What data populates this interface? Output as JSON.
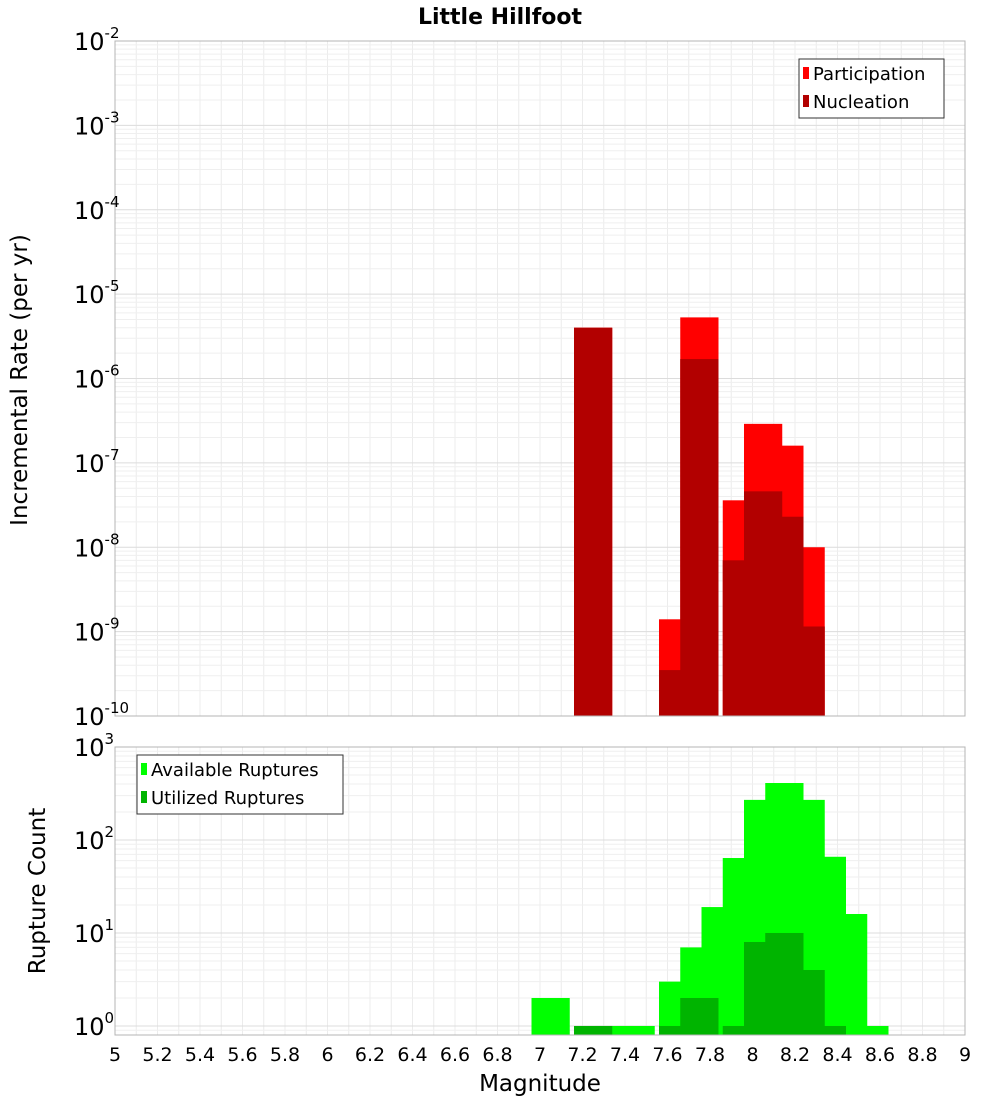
{
  "chart_data": {
    "title": "Little Hillfoot",
    "xlabel": "Magnitude",
    "x_ticks": [
      "5",
      "5.2",
      "5.4",
      "5.6",
      "5.8",
      "6",
      "6.2",
      "6.4",
      "6.6",
      "6.8",
      "7",
      "7.2",
      "7.4",
      "7.6",
      "7.8",
      "8",
      "8.2",
      "8.4",
      "8.6",
      "8.8",
      "9"
    ],
    "xlim": [
      5,
      9
    ],
    "grid": true,
    "panels": [
      {
        "type": "bar",
        "ylabel": "Incremental Rate (per yr)",
        "yscale": "log",
        "ylim": [
          1e-10,
          0.01
        ],
        "y_ticks": [
          {
            "base": "10",
            "exp": "-10"
          },
          {
            "base": "10",
            "exp": "-9"
          },
          {
            "base": "10",
            "exp": "-8"
          },
          {
            "base": "10",
            "exp": "-7"
          },
          {
            "base": "10",
            "exp": "-6"
          },
          {
            "base": "10",
            "exp": "-5"
          },
          {
            "base": "10",
            "exp": "-4"
          },
          {
            "base": "10",
            "exp": "-3"
          },
          {
            "base": "10",
            "exp": "-2"
          }
        ],
        "legend_position": "top-right",
        "series": [
          {
            "name": "Participation",
            "color": "#ff0000",
            "x": [
              7.25,
              7.65,
              7.75,
              7.95,
              8.05,
              8.15,
              8.25
            ],
            "values": [
              4e-06,
              1.4e-09,
              5.3e-06,
              3.6e-08,
              2.9e-07,
              1.6e-07,
              1e-08
            ]
          },
          {
            "name": "Nucleation",
            "color": "#b20000",
            "x": [
              7.25,
              7.65,
              7.75,
              7.95,
              8.05,
              8.15,
              8.25
            ],
            "values": [
              4e-06,
              3.5e-10,
              1.7e-06,
              7e-09,
              4.6e-08,
              2.3e-08,
              1.15e-09
            ]
          }
        ]
      },
      {
        "type": "bar",
        "ylabel": "Rupture Count",
        "yscale": "log",
        "ylim": [
          0.8,
          1000
        ],
        "y_ticks": [
          {
            "base": "10",
            "exp": "0"
          },
          {
            "base": "10",
            "exp": "1"
          },
          {
            "base": "10",
            "exp": "2"
          },
          {
            "base": "10",
            "exp": "3"
          }
        ],
        "legend_position": "top-left",
        "series": [
          {
            "name": "Available Ruptures",
            "color": "#00ff00",
            "x": [
              7.05,
              7.25,
              7.35,
              7.45,
              7.65,
              7.75,
              7.85,
              7.95,
              8.05,
              8.15,
              8.25,
              8.35,
              8.45,
              8.55
            ],
            "values": [
              2,
              1,
              1,
              1,
              3,
              7,
              19,
              64,
              270,
              410,
              270,
              66,
              16,
              1
            ]
          },
          {
            "name": "Utilized Ruptures",
            "color": "#00b400",
            "x": [
              7.25,
              7.65,
              7.75,
              7.95,
              8.05,
              8.15,
              8.25,
              8.35
            ],
            "values": [
              1,
              1,
              2,
              1,
              8,
              10,
              4,
              1
            ]
          }
        ]
      }
    ]
  }
}
